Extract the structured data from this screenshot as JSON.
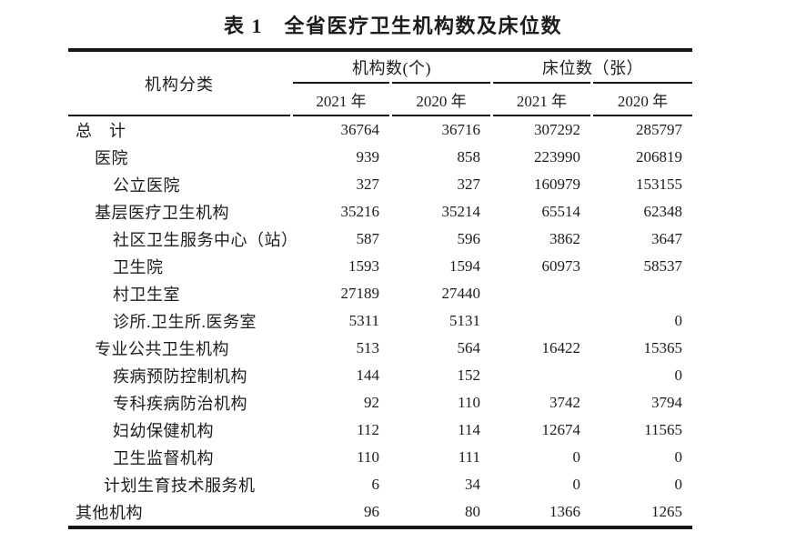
{
  "title": "表 1　全省医疗卫生机构数及床位数",
  "colors": {
    "text": "#1c1c1c",
    "rule_line": "#161616",
    "background": "#ffffff"
  },
  "table": {
    "category_header": "机构分类",
    "group_headers": [
      {
        "label": "机构数(个)"
      },
      {
        "label": "床位数（张）"
      }
    ],
    "year_headers": [
      "2021 年",
      "2020 年",
      "2021 年",
      "2020 年"
    ],
    "rows": [
      {
        "label": "总　计",
        "indent_level": 0,
        "values": [
          "36764",
          "36716",
          "307292",
          "285797"
        ]
      },
      {
        "label": "医院",
        "indent_level": 1,
        "values": [
          "939",
          "858",
          "223990",
          "206819"
        ]
      },
      {
        "label": "公立医院",
        "indent_level": 2,
        "values": [
          "327",
          "327",
          "160979",
          "153155"
        ]
      },
      {
        "label": "基层医疗卫生机构",
        "indent_level": 1,
        "values": [
          "35216",
          "35214",
          "65514",
          "62348"
        ]
      },
      {
        "label": "社区卫生服务中心（站）",
        "indent_level": 2,
        "values": [
          "587",
          "596",
          "3862",
          "3647"
        ]
      },
      {
        "label": "卫生院",
        "indent_level": 2,
        "values": [
          "1593",
          "1594",
          "60973",
          "58537"
        ]
      },
      {
        "label": "村卫生室",
        "indent_level": 2,
        "values": [
          "27189",
          "27440",
          "",
          ""
        ]
      },
      {
        "label": "诊所.卫生所.医务室",
        "indent_level": 2,
        "values": [
          "5311",
          "5131",
          "",
          "0"
        ]
      },
      {
        "label": "专业公共卫生机构",
        "indent_level": 1,
        "values": [
          "513",
          "564",
          "16422",
          "15365"
        ]
      },
      {
        "label": "疾病预防控制机构",
        "indent_level": 2,
        "values": [
          "144",
          "152",
          "",
          "0"
        ]
      },
      {
        "label": "专科疾病防治机构",
        "indent_level": 2,
        "values": [
          "92",
          "110",
          "3742",
          "3794"
        ]
      },
      {
        "label": "妇幼保健机构",
        "indent_level": 2,
        "values": [
          "112",
          "114",
          "12674",
          "11565"
        ]
      },
      {
        "label": "卫生监督机构",
        "indent_level": 2,
        "values": [
          "110",
          "111",
          "0",
          "0"
        ]
      },
      {
        "label": "计划生育技术服务机",
        "indent_level": 3,
        "values": [
          "6",
          "34",
          "0",
          "0"
        ]
      },
      {
        "label": "其他机构",
        "indent_level": 0,
        "values": [
          "96",
          "80",
          "1366",
          "1265"
        ]
      }
    ]
  }
}
